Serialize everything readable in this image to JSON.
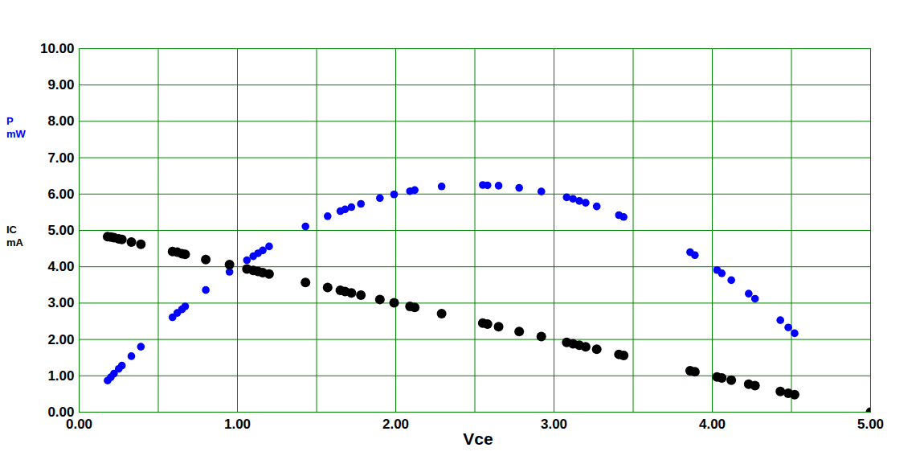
{
  "chart_data": {
    "type": "scatter",
    "x_label": "Vce",
    "x": [
      0.18,
      0.2,
      0.22,
      0.25,
      0.27,
      0.33,
      0.39,
      0.59,
      0.62,
      0.65,
      0.67,
      0.8,
      0.95,
      1.06,
      1.1,
      1.13,
      1.16,
      1.2,
      1.43,
      1.57,
      1.65,
      1.68,
      1.72,
      1.78,
      1.9,
      1.99,
      2.09,
      2.12,
      2.29,
      2.55,
      2.58,
      2.65,
      2.78,
      2.92,
      3.08,
      3.12,
      3.16,
      3.2,
      3.27,
      3.41,
      3.44,
      3.86,
      3.89,
      4.03,
      4.06,
      4.12,
      4.23,
      4.27,
      4.43,
      4.48,
      4.52,
      5.0
    ],
    "series": [
      {
        "name": "P mW",
        "color": "#0000ff",
        "marker": "circle",
        "values": [
          0.87,
          0.96,
          1.06,
          1.19,
          1.28,
          1.54,
          1.8,
          2.61,
          2.73,
          2.83,
          2.91,
          3.36,
          3.86,
          4.18,
          4.29,
          4.37,
          4.45,
          4.56,
          5.11,
          5.39,
          5.53,
          5.58,
          5.64,
          5.73,
          5.89,
          5.99,
          6.08,
          6.11,
          6.21,
          6.25,
          6.24,
          6.23,
          6.17,
          6.07,
          5.91,
          5.87,
          5.81,
          5.76,
          5.66,
          5.42,
          5.37,
          4.4,
          4.32,
          3.91,
          3.82,
          3.63,
          3.26,
          3.12,
          2.53,
          2.33,
          2.17,
          0.0
        ]
      },
      {
        "name": "IC mA",
        "color": "#000000",
        "marker": "circle",
        "values": [
          4.83,
          4.82,
          4.8,
          4.77,
          4.75,
          4.68,
          4.62,
          4.42,
          4.4,
          4.36,
          4.34,
          4.2,
          4.06,
          3.94,
          3.9,
          3.87,
          3.84,
          3.8,
          3.57,
          3.43,
          3.35,
          3.32,
          3.28,
          3.22,
          3.1,
          3.01,
          2.91,
          2.88,
          2.71,
          2.45,
          2.42,
          2.35,
          2.22,
          2.08,
          1.92,
          1.88,
          1.84,
          1.8,
          1.73,
          1.59,
          1.56,
          1.14,
          1.11,
          0.97,
          0.94,
          0.88,
          0.77,
          0.73,
          0.57,
          0.52,
          0.48,
          0.0
        ]
      }
    ],
    "xlim": [
      0,
      5
    ],
    "xticks": [
      {
        "value": 0,
        "label": "0.00"
      },
      {
        "value": 0.5,
        "label": ""
      },
      {
        "value": 1,
        "label": "1.00"
      },
      {
        "value": 1.5,
        "label": ""
      },
      {
        "value": 2,
        "label": "2.00"
      },
      {
        "value": 2.5,
        "label": ""
      },
      {
        "value": 3,
        "label": "3.00"
      },
      {
        "value": 3.5,
        "label": ""
      },
      {
        "value": 4,
        "label": "4.00"
      },
      {
        "value": 4.5,
        "label": ""
      },
      {
        "value": 5,
        "label": "5.00"
      }
    ],
    "ylim": [
      0,
      10
    ],
    "yticks": [
      {
        "value": 0,
        "label": "0.00"
      },
      {
        "value": 1,
        "label": "1.00"
      },
      {
        "value": 2,
        "label": "2.00"
      },
      {
        "value": 3,
        "label": "3.00"
      },
      {
        "value": 4,
        "label": "4.00"
      },
      {
        "value": 5,
        "label": "5.00"
      },
      {
        "value": 6,
        "label": "6.00"
      },
      {
        "value": 7,
        "label": "7.00"
      },
      {
        "value": 8,
        "label": "8.00"
      },
      {
        "value": 9,
        "label": "9.00"
      },
      {
        "value": 10,
        "label": "10.00"
      }
    ],
    "grid": true
  }
}
